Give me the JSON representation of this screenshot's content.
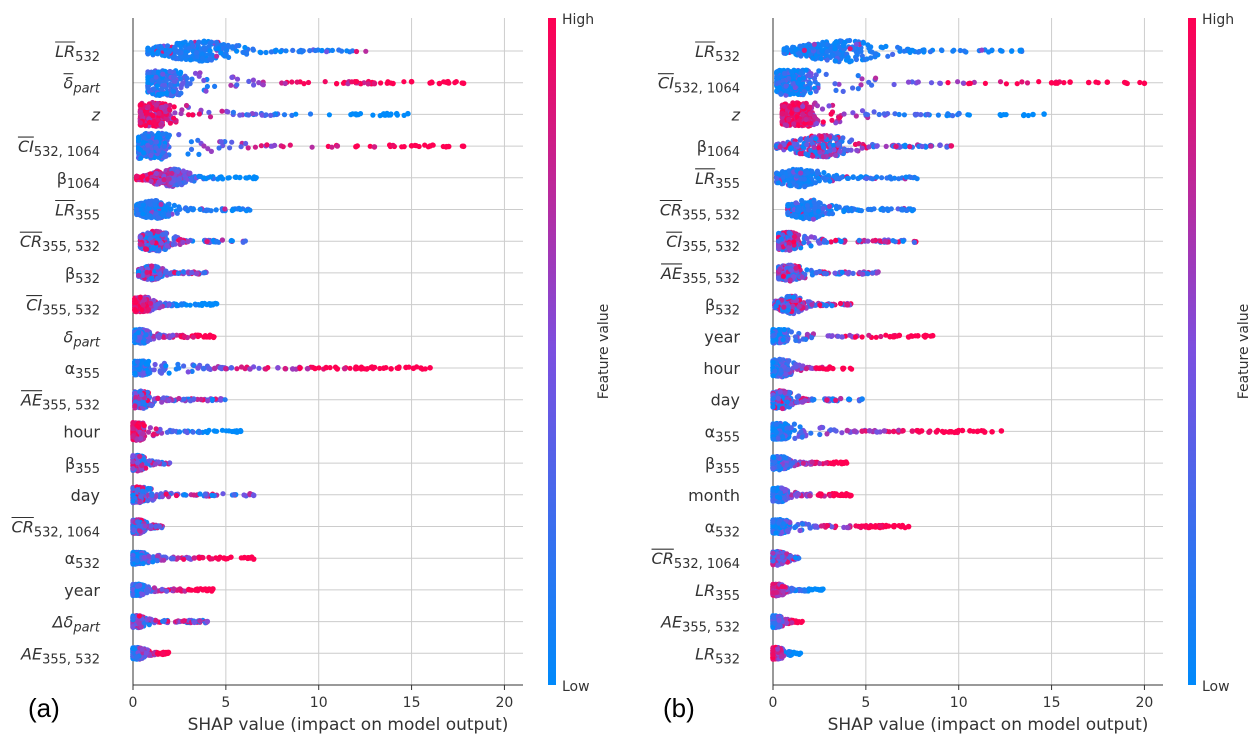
{
  "colors": {
    "low": "#008afb",
    "mid": "#7b4fe0",
    "high": "#ff0052",
    "grid": "#cccccc",
    "axis": "#333333"
  },
  "chart_data": [
    {
      "type": "scatter",
      "panel_label": "(a)",
      "xlabel": "SHAP value (impact on model output)",
      "xlim": [
        0,
        21
      ],
      "xticks": [
        "0",
        "5",
        "10",
        "15",
        "20"
      ],
      "colorbar": {
        "label": "Feature value",
        "high": "High",
        "low": "Low"
      },
      "features": [
        {
          "label": {
            "b": "LR",
            "s": "532",
            "bar": true
          },
          "min": 0.8,
          "max": 13.0,
          "peak": 3.7,
          "width": 10,
          "mode": "blue"
        },
        {
          "label": {
            "b": "δ",
            "s": "part",
            "bar": true,
            "si": true
          },
          "min": 0.8,
          "max": 17.8,
          "peak": 2.0,
          "width": 13,
          "mode": "rising",
          "outliers": [
            13,
            14,
            15,
            16,
            16.5,
            17,
            17.8
          ]
        },
        {
          "label": {
            "b": "z",
            "s": "",
            "bar": false,
            "bi": true
          },
          "min": 0.4,
          "max": 14.8,
          "peak": 1.3,
          "width": 12,
          "mode": "falling",
          "outliers": [
            12,
            13.5,
            14.2,
            14.8
          ]
        },
        {
          "label": {
            "b": "CI",
            "s": "532, 1064",
            "bar": true
          },
          "min": 0.3,
          "max": 17.8,
          "peak": 1.2,
          "width": 13,
          "mode": "rising",
          "outliers": [
            11,
            12,
            13,
            14,
            15,
            16,
            17,
            17.8
          ]
        },
        {
          "label": {
            "b": "β",
            "s": "1064",
            "bar": false
          },
          "min": 0.2,
          "max": 6.7,
          "peak": 2.0,
          "width": 9,
          "mode": "falling"
        },
        {
          "label": {
            "b": "LR",
            "s": "355",
            "bar": true
          },
          "min": 0.2,
          "max": 6.3,
          "peak": 1.2,
          "width": 9,
          "mode": "blue"
        },
        {
          "label": {
            "b": "CR",
            "s": "355, 532",
            "bar": true
          },
          "min": 0.4,
          "max": 6.1,
          "peak": 1.2,
          "width": 10,
          "mode": "mixed"
        },
        {
          "label": {
            "b": "β",
            "s": "532",
            "bar": false
          },
          "min": 0.3,
          "max": 4.2,
          "peak": 1.0,
          "width": 7,
          "mode": "mixed"
        },
        {
          "label": {
            "b": "CI",
            "s": "355, 532",
            "bar": true
          },
          "min": 0.1,
          "max": 4.5,
          "peak": 0.5,
          "width": 8,
          "mode": "falling",
          "outliers": [
            4.5
          ]
        },
        {
          "label": {
            "b": "δ",
            "s": "part",
            "bar": false,
            "si": true
          },
          "min": 0.1,
          "max": 4.4,
          "peak": 0.4,
          "width": 7,
          "mode": "rising"
        },
        {
          "label": {
            "b": "α",
            "s": "355",
            "bar": false
          },
          "min": 0.1,
          "max": 16.0,
          "peak": 0.4,
          "width": 7,
          "mode": "rising",
          "outliers": [
            3.5,
            3.8,
            4.1,
            4.4,
            4.7,
            5.0,
            5.3,
            6.3,
            7.8,
            8.2,
            8.6,
            9.0,
            9.4,
            9.8,
            10.4,
            11.0,
            11.4,
            12.0,
            12.3,
            13.5,
            13.9,
            14.3,
            14.7,
            15.1,
            15.5,
            16.0
          ]
        },
        {
          "label": {
            "b": "AE",
            "s": "355, 532",
            "bar": true
          },
          "min": 0.1,
          "max": 5.0,
          "peak": 0.4,
          "width": 9,
          "mode": "mixed"
        },
        {
          "label": {
            "b": "hour",
            "s": "",
            "bar": false,
            "plain": true
          },
          "min": 0.0,
          "max": 5.8,
          "peak": 0.2,
          "width": 9,
          "mode": "falling",
          "outliers": [
            5.6,
            5.8
          ]
        },
        {
          "label": {
            "b": "β",
            "s": "355",
            "bar": false
          },
          "min": 0.0,
          "max": 2.0,
          "peak": 0.2,
          "width": 8,
          "mode": "mixed"
        },
        {
          "label": {
            "b": "day",
            "s": "",
            "bar": false,
            "plain": true
          },
          "min": 0.0,
          "max": 6.5,
          "peak": 0.2,
          "width": 8,
          "mode": "mixed",
          "outliers": [
            6.3,
            6.5
          ]
        },
        {
          "label": {
            "b": "CR",
            "s": "532, 1064",
            "bar": true
          },
          "min": 0.0,
          "max": 1.6,
          "peak": 0.2,
          "width": 7,
          "mode": "mixed"
        },
        {
          "label": {
            "b": "α",
            "s": "532",
            "bar": false
          },
          "min": 0.0,
          "max": 6.5,
          "peak": 0.2,
          "width": 6,
          "mode": "rising",
          "outliers": [
            3.0,
            3.3,
            4.6,
            4.9,
            6.3,
            6.5
          ]
        },
        {
          "label": {
            "b": "year",
            "s": "",
            "bar": false,
            "plain": true
          },
          "min": 0.0,
          "max": 4.3,
          "peak": 0.2,
          "width": 6,
          "mode": "rising",
          "outliers": [
            3.0,
            3.4,
            3.8,
            4.1,
            4.3
          ]
        },
        {
          "label": {
            "b": "Δδ",
            "s": "part",
            "bar": false,
            "si": true
          },
          "min": 0.0,
          "max": 4.0,
          "peak": 0.2,
          "width": 6,
          "mode": "mixed",
          "outliers": [
            3.3,
            3.6,
            4.0
          ]
        },
        {
          "label": {
            "b": "AE",
            "s": "355, 532",
            "bar": false
          },
          "min": 0.0,
          "max": 2.0,
          "peak": 0.2,
          "width": 6,
          "mode": "rising"
        }
      ]
    },
    {
      "type": "scatter",
      "panel_label": "(b)",
      "xlabel": "SHAP value (impact on model output)",
      "xlim": [
        0,
        21
      ],
      "xticks": [
        "0",
        "5",
        "10",
        "15",
        "20"
      ],
      "colorbar": {
        "label": "Feature value",
        "high": "High",
        "low": "Low"
      },
      "features": [
        {
          "label": {
            "b": "LR",
            "s": "532",
            "bar": true
          },
          "min": 0.6,
          "max": 13.4,
          "peak": 3.8,
          "width": 11,
          "mode": "blue"
        },
        {
          "label": {
            "b": "CI",
            "s": "532, 1064",
            "bar": true
          },
          "min": 0.2,
          "max": 20.0,
          "peak": 1.3,
          "width": 13,
          "mode": "rising",
          "outliers": [
            15,
            16,
            17,
            18,
            19,
            20
          ]
        },
        {
          "label": {
            "b": "z",
            "s": "",
            "bar": false,
            "bi": true
          },
          "min": 0.5,
          "max": 14.6,
          "peak": 1.6,
          "width": 12,
          "mode": "falling",
          "outliers": [
            13.5,
            14.0,
            14.6
          ]
        },
        {
          "label": {
            "b": "β",
            "s": "1064",
            "bar": false
          },
          "min": 0.2,
          "max": 9.6,
          "peak": 2.7,
          "width": 11,
          "mode": "mixed",
          "outliers": [
            8.5,
            9.0,
            9.6
          ]
        },
        {
          "label": {
            "b": "LR",
            "s": "355",
            "bar": true
          },
          "min": 0.2,
          "max": 8.0,
          "peak": 1.5,
          "width": 9,
          "mode": "blue"
        },
        {
          "label": {
            "b": "CR",
            "s": "355, 532",
            "bar": true
          },
          "min": 0.8,
          "max": 7.6,
          "peak": 2.0,
          "width": 10,
          "mode": "blue"
        },
        {
          "label": {
            "b": "CI",
            "s": "355, 532",
            "bar": true
          },
          "min": 0.3,
          "max": 7.8,
          "peak": 0.8,
          "width": 9,
          "mode": "mixed"
        },
        {
          "label": {
            "b": "AE",
            "s": "355, 532",
            "bar": true
          },
          "min": 0.3,
          "max": 5.9,
          "peak": 0.9,
          "width": 8,
          "mode": "mixed"
        },
        {
          "label": {
            "b": "β",
            "s": "532",
            "bar": false
          },
          "min": 0.1,
          "max": 4.2,
          "peak": 1.0,
          "width": 9,
          "mode": "mixed"
        },
        {
          "label": {
            "b": "year",
            "s": "",
            "bar": false,
            "plain": true
          },
          "min": 0.0,
          "max": 8.6,
          "peak": 0.3,
          "width": 7,
          "mode": "rising",
          "outliers": [
            6.3,
            6.8,
            7.3,
            7.8,
            8.2,
            8.6
          ]
        },
        {
          "label": {
            "b": "hour",
            "s": "",
            "bar": false,
            "plain": true
          },
          "min": 0.0,
          "max": 4.5,
          "peak": 0.4,
          "width": 9,
          "mode": "rising"
        },
        {
          "label": {
            "b": "day",
            "s": "",
            "bar": false,
            "plain": true
          },
          "min": 0.0,
          "max": 4.8,
          "peak": 0.4,
          "width": 9,
          "mode": "mixed",
          "outliers": [
            4.8
          ]
        },
        {
          "label": {
            "b": "α",
            "s": "355",
            "bar": false
          },
          "min": 0.0,
          "max": 12.3,
          "peak": 0.4,
          "width": 8,
          "mode": "rising",
          "outliers": [
            4.0,
            4.4,
            4.8,
            5.2,
            5.6,
            6.0,
            6.5,
            7.0,
            7.5,
            8.0,
            8.4,
            8.8,
            9.2,
            9.6,
            10.2,
            10.6,
            11.0,
            11.4,
            11.8,
            12.3
          ]
        },
        {
          "label": {
            "b": "β",
            "s": "355",
            "bar": false
          },
          "min": 0.0,
          "max": 4.0,
          "peak": 0.3,
          "width": 7,
          "mode": "rising"
        },
        {
          "label": {
            "b": "month",
            "s": "",
            "bar": false,
            "plain": true
          },
          "min": 0.0,
          "max": 4.2,
          "peak": 0.3,
          "width": 7,
          "mode": "rising",
          "outliers": [
            3.7,
            4.0,
            4.2
          ]
        },
        {
          "label": {
            "b": "α",
            "s": "532",
            "bar": false
          },
          "min": 0.0,
          "max": 7.3,
          "peak": 0.3,
          "width": 7,
          "mode": "rising",
          "outliers": [
            5.2,
            5.5,
            5.8,
            6.5,
            6.9,
            7.3
          ]
        },
        {
          "label": {
            "b": "CR",
            "s": "532, 1064",
            "bar": true
          },
          "min": 0.0,
          "max": 1.4,
          "peak": 0.2,
          "width": 7,
          "mode": "mixed"
        },
        {
          "label": {
            "b": "LR",
            "s": "355",
            "bar": false
          },
          "min": 0.0,
          "max": 2.7,
          "peak": 0.2,
          "width": 6,
          "mode": "falling"
        },
        {
          "label": {
            "b": "AE",
            "s": "355, 532",
            "bar": false
          },
          "min": 0.0,
          "max": 1.6,
          "peak": 0.1,
          "width": 6,
          "mode": "rising"
        },
        {
          "label": {
            "b": "LR",
            "s": "532",
            "bar": false
          },
          "min": 0.0,
          "max": 1.5,
          "peak": 0.1,
          "width": 6,
          "mode": "falling"
        }
      ]
    }
  ]
}
